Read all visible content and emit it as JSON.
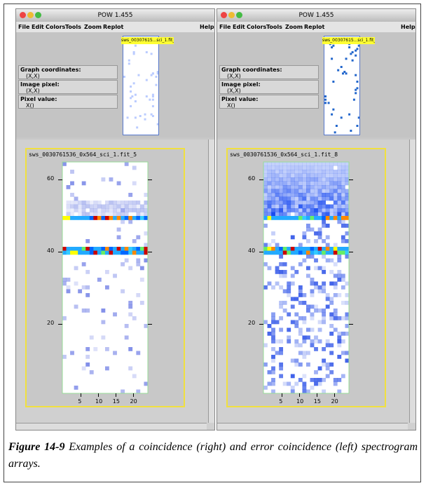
{
  "windows": [
    {
      "title": "POW 1.455",
      "menu": [
        "File",
        "Edit",
        "Colors",
        "Tools",
        "Zoom",
        "Replot",
        "Help"
      ],
      "thumbnail_label": "sws_00307615...sci_1.fit_5",
      "info": [
        {
          "label": "Graph coordinates:",
          "value": "(X,X)"
        },
        {
          "label": "Image pixel:",
          "value": "(X,X)"
        },
        {
          "label": "Pixel value:",
          "value": "X()"
        }
      ],
      "plot_title": "sws_0030761536_0x564_sci_1.fit_5",
      "yticks": [
        60,
        40,
        20
      ],
      "xticks": [
        5,
        10,
        15,
        20
      ]
    },
    {
      "title": "POW 1.455",
      "menu": [
        "File",
        "Edit",
        "Colors",
        "Tools",
        "Zoom",
        "Replot",
        "Help"
      ],
      "thumbnail_label": "sws_00307615...sci_1.fit_8",
      "info": [
        {
          "label": "Graph coordinates:",
          "value": "(X,X)"
        },
        {
          "label": "Image pixel:",
          "value": "(X,X)"
        },
        {
          "label": "Pixel value:",
          "value": "X()"
        }
      ],
      "plot_title": "sws_0030761536_0x564_sci_1.fit_8",
      "yticks": [
        60,
        40,
        20
      ],
      "xticks": [
        5,
        10,
        15,
        20
      ]
    }
  ],
  "caption": {
    "label": "Figure 14-9",
    "text": "Examples of a coincidence (right) and error coincidence (left) spectrogram arrays."
  }
}
